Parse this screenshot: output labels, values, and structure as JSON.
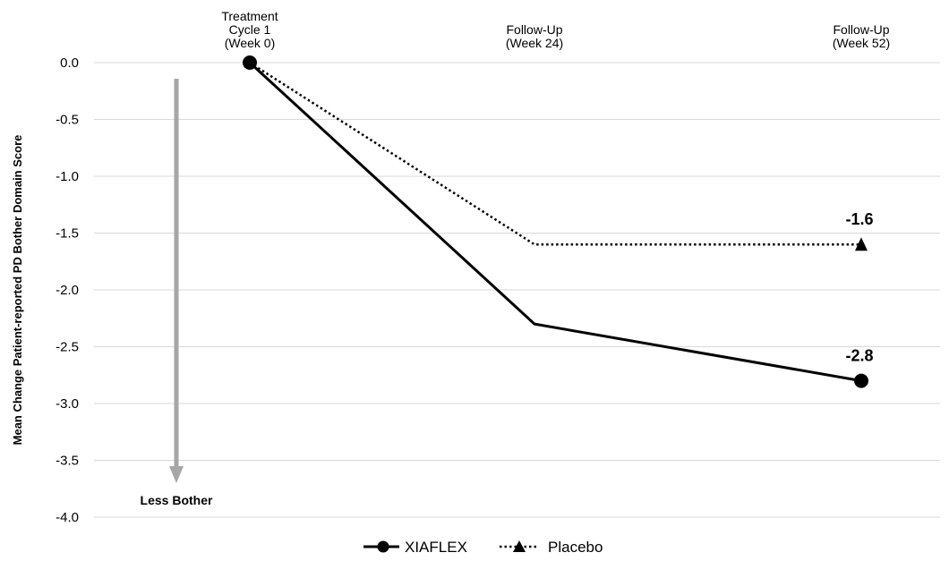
{
  "chart_data": {
    "type": "line",
    "categories": [
      [
        "Treatment",
        "Cycle 1",
        "(Week 0)"
      ],
      [
        "Follow-Up",
        "(Week 24)"
      ],
      [
        "Follow-Up",
        "(Week 52)"
      ]
    ],
    "ylabel": "Mean Change Patient-reported  PD Bother Domain Score",
    "ylim": [
      -4.0,
      0.0
    ],
    "yticks": [
      "0.0",
      "-0.5",
      "-1.0",
      "-1.5",
      "-2.0",
      "-2.5",
      "-3.0",
      "-3.5",
      "-4.0"
    ],
    "grid": true,
    "legend_position": "bottom",
    "series": [
      {
        "name": "XIAFLEX",
        "values": [
          0.0,
          -2.3,
          -2.8
        ],
        "line_style": "solid",
        "marker": "circle",
        "color": "#000000"
      },
      {
        "name": "Placebo",
        "values": [
          0.0,
          -1.6,
          -1.6
        ],
        "line_style": "dotted",
        "marker": "triangle",
        "color": "#000000"
      }
    ],
    "data_labels": [
      {
        "series": "Placebo",
        "category_index": 2,
        "text": "-1.6"
      },
      {
        "series": "XIAFLEX",
        "category_index": 2,
        "text": "-2.8"
      }
    ],
    "annotation": {
      "text": "Less Bother",
      "arrow_color": "#a6a6a6"
    },
    "grid_color": "#d9d9d9"
  }
}
